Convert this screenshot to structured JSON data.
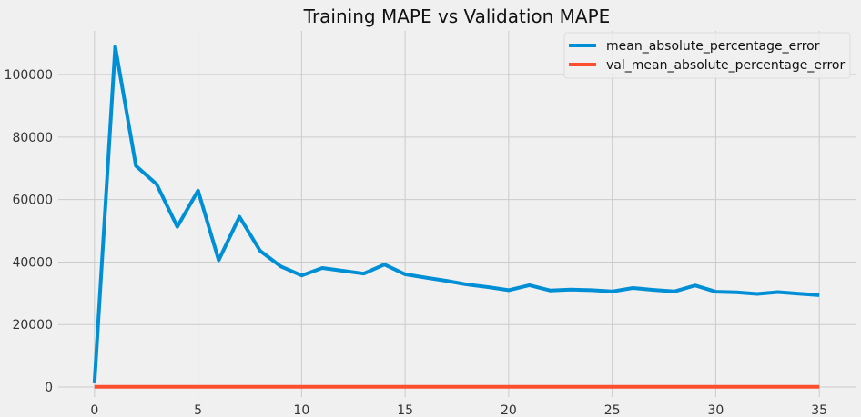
{
  "chart_data": {
    "type": "line",
    "title": "Training MAPE vs Validation MAPE",
    "xlabel": "",
    "ylabel": "",
    "xlim": [
      -1.75,
      36.75
    ],
    "ylim": [
      -3200,
      114000
    ],
    "xticks": [
      0,
      5,
      10,
      15,
      20,
      25,
      30,
      35
    ],
    "yticks": [
      0,
      20000,
      40000,
      60000,
      80000,
      100000
    ],
    "grid": true,
    "legend": "top-right",
    "x": [
      0,
      1,
      2,
      3,
      4,
      5,
      6,
      7,
      8,
      9,
      10,
      11,
      12,
      13,
      14,
      15,
      16,
      17,
      18,
      19,
      20,
      21,
      22,
      23,
      24,
      25,
      26,
      27,
      28,
      29,
      30,
      31,
      32,
      33,
      34,
      35
    ],
    "series": [
      {
        "name": "mean_absolute_percentage_error",
        "color": "#008fd5",
        "values": [
          1200,
          109000,
          70800,
          64900,
          51300,
          62900,
          40600,
          54500,
          43600,
          38600,
          35700,
          38100,
          37200,
          36300,
          39200,
          36100,
          35000,
          34000,
          32800,
          32000,
          31000,
          32600,
          30900,
          31200,
          31000,
          30600,
          31700,
          31100,
          30600,
          32500,
          30500,
          30300,
          29800,
          30400,
          29900,
          29400
        ]
      },
      {
        "name": "val_mean_absolute_percentage_error",
        "color": "#fc4f30",
        "values": [
          100,
          100,
          100,
          100,
          100,
          100,
          100,
          100,
          100,
          100,
          100,
          100,
          100,
          100,
          100,
          100,
          100,
          100,
          100,
          100,
          100,
          100,
          100,
          100,
          100,
          100,
          100,
          100,
          100,
          100,
          100,
          100,
          100,
          100,
          100,
          100
        ]
      }
    ]
  }
}
